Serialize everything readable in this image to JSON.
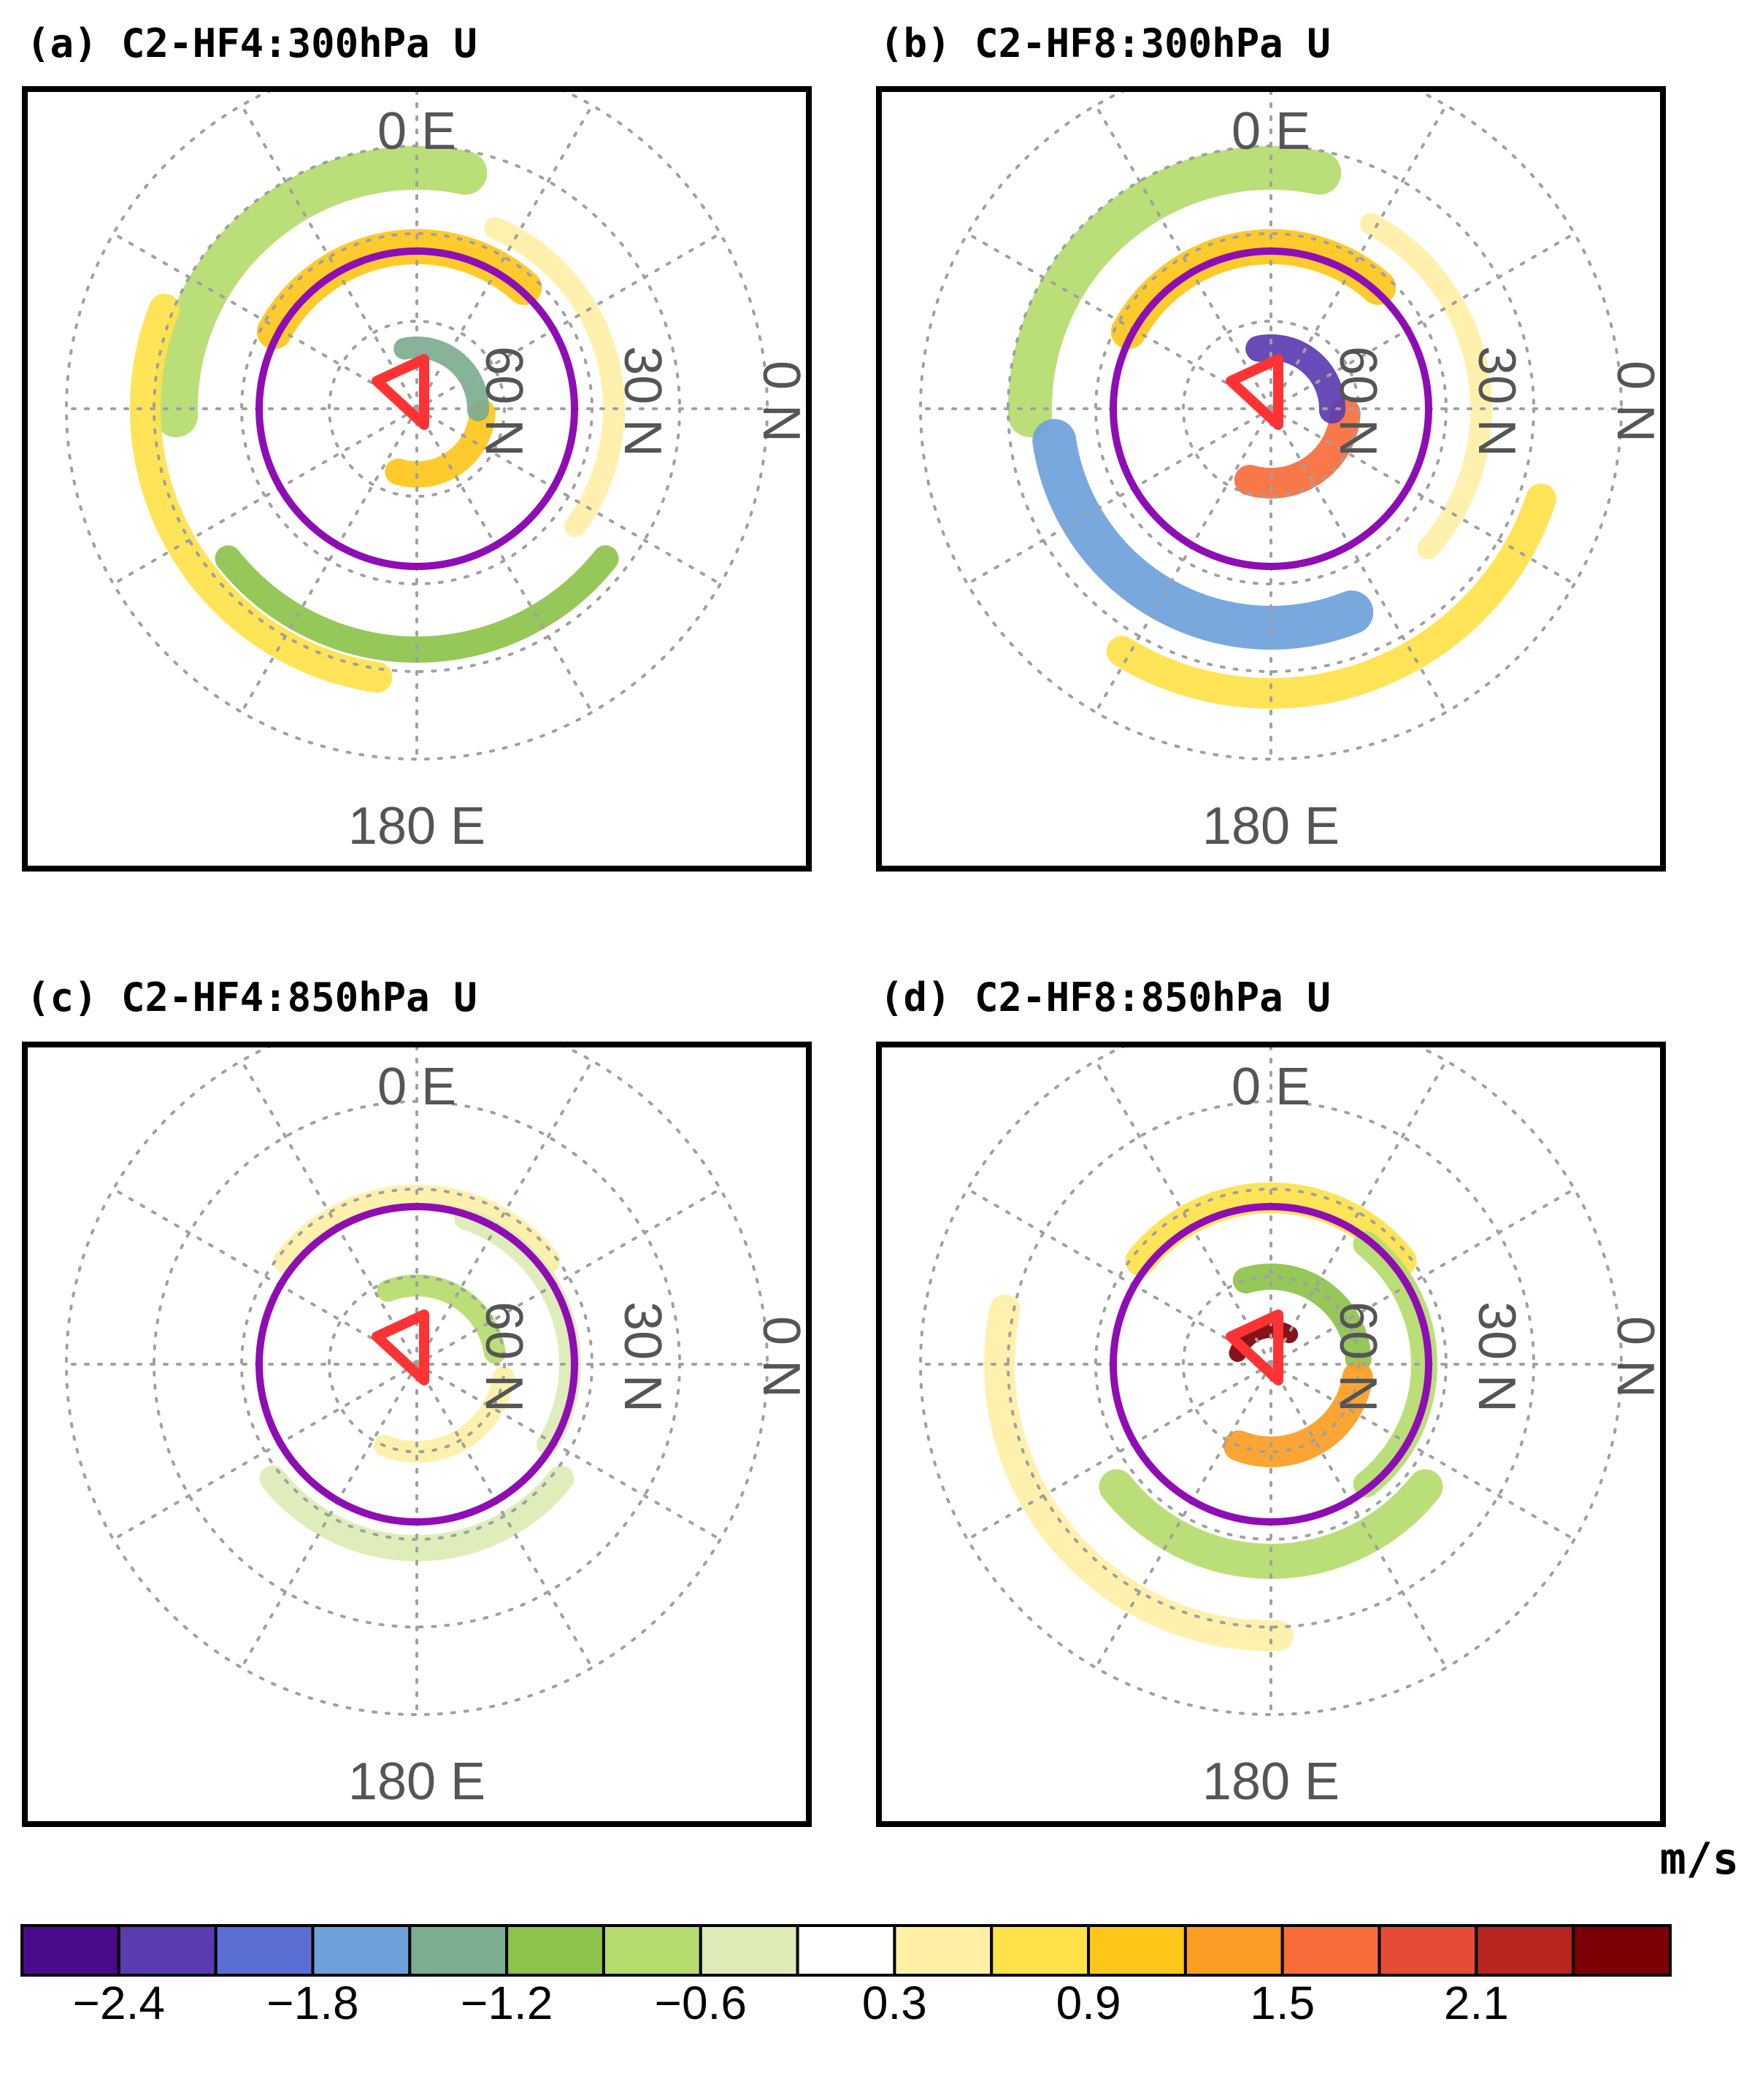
{
  "chart_data": [
    {
      "type": "heatmap",
      "panel": "a",
      "title": "(a) C2-HF4:300hPa U",
      "projection": "polar stereographic (northern hemisphere)",
      "map_labels": {
        "top": "0 E",
        "bottom": "180 E",
        "lat_labels": [
          "60 N",
          "30 N",
          "0 N"
        ]
      },
      "markers": [
        "purple circle at 60 N",
        "red triangle near pole"
      ],
      "anomaly_bands": [
        {
          "angle": -40,
          "radius": 0.55,
          "width": 0.1,
          "value": -0.8
        },
        {
          "angle": -10,
          "radius": 0.37,
          "width": 0.08,
          "value": 1.0
        },
        {
          "angle": 145,
          "radius": 0.15,
          "width": 0.06,
          "value": 1.0
        },
        {
          "angle": 40,
          "radius": 0.14,
          "width": 0.05,
          "value": -1.4
        },
        {
          "angle": -120,
          "radius": 0.62,
          "width": 0.07,
          "value": 0.6
        },
        {
          "angle": 180,
          "radius": 0.55,
          "width": 0.06,
          "value": -1.0
        },
        {
          "angle": 75,
          "radius": 0.45,
          "width": 0.05,
          "value": 0.5
        }
      ]
    },
    {
      "type": "heatmap",
      "panel": "b",
      "title": "(b) C2-HF8:300hPa U",
      "projection": "polar stereographic (northern hemisphere)",
      "map_labels": {
        "top": "0 E",
        "bottom": "180 E",
        "lat_labels": [
          "60 N",
          "30 N",
          "0 N"
        ]
      },
      "markers": [
        "purple circle at 60 N",
        "red triangle near pole"
      ],
      "anomaly_bands": [
        {
          "angle": -40,
          "radius": 0.55,
          "width": 0.1,
          "value": -0.8
        },
        {
          "angle": -10,
          "radius": 0.37,
          "width": 0.08,
          "value": 1.0
        },
        {
          "angle": 145,
          "radius": 0.17,
          "width": 0.07,
          "value": 1.6
        },
        {
          "angle": 40,
          "radius": 0.14,
          "width": 0.06,
          "value": -2.3
        },
        {
          "angle": -150,
          "radius": 0.5,
          "width": 0.1,
          "value": -1.8
        },
        {
          "angle": 160,
          "radius": 0.65,
          "width": 0.07,
          "value": 0.6
        },
        {
          "angle": 80,
          "radius": 0.48,
          "width": 0.05,
          "value": 0.4
        }
      ]
    },
    {
      "type": "heatmap",
      "panel": "c",
      "title": "(c) C2-HF4:850hPa U",
      "projection": "polar stereographic (northern hemisphere)",
      "map_labels": {
        "top": "0 E",
        "bottom": "180 E",
        "lat_labels": [
          "60 N",
          "30 N",
          "0 N"
        ]
      },
      "markers": [
        "purple circle at 60 N",
        "red triangle near pole"
      ],
      "anomaly_bands": [
        {
          "angle": 0,
          "radius": 0.38,
          "width": 0.06,
          "value": 0.5
        },
        {
          "angle": 30,
          "radius": 0.18,
          "width": 0.05,
          "value": -0.7
        },
        {
          "angle": 150,
          "radius": 0.2,
          "width": 0.05,
          "value": 0.5
        },
        {
          "angle": 180,
          "radius": 0.42,
          "width": 0.06,
          "value": -0.5
        },
        {
          "angle": 70,
          "radius": 0.35,
          "width": 0.05,
          "value": -0.5
        }
      ]
    },
    {
      "type": "heatmap",
      "panel": "d",
      "title": "(d) C2-HF8:850hPa U",
      "projection": "polar stereographic (northern hemisphere)",
      "map_labels": {
        "top": "0 E",
        "bottom": "180 E",
        "lat_labels": [
          "60 N",
          "30 N",
          "0 N"
        ]
      },
      "markers": [
        "purple circle at 60 N",
        "red triangle near pole"
      ],
      "anomaly_bands": [
        {
          "angle": 0,
          "radius": 0.38,
          "width": 0.07,
          "value": 0.8
        },
        {
          "angle": 35,
          "radius": 0.2,
          "width": 0.06,
          "value": -1.0
        },
        {
          "angle": 150,
          "radius": 0.2,
          "width": 0.07,
          "value": 1.2
        },
        {
          "angle": -20,
          "radius": 0.08,
          "width": 0.04,
          "value": 2.4
        },
        {
          "angle": 180,
          "radius": 0.45,
          "width": 0.08,
          "value": -0.9
        },
        {
          "angle": -130,
          "radius": 0.62,
          "width": 0.07,
          "value": 0.5
        },
        {
          "angle": 90,
          "radius": 0.35,
          "width": 0.06,
          "value": -0.9
        }
      ]
    }
  ],
  "colorbar": {
    "units": "m/s",
    "colors": [
      "#4b0a8c",
      "#5b3cb0",
      "#5a6ed4",
      "#6ea1db",
      "#7bae8f",
      "#8dc24b",
      "#b5dc6d",
      "#dcecb4",
      "#ffffff",
      "#fff0a6",
      "#ffe24a",
      "#ffc71a",
      "#fc9d23",
      "#f86c3a",
      "#e44c35",
      "#b82520",
      "#7b0006"
    ],
    "tick_labels": [
      "-2.4",
      "-1.8",
      "-1.2",
      "-0.6",
      "0.3",
      "0.9",
      "1.5",
      "2.1"
    ]
  },
  "ring_color": "#8e0db5",
  "triangle_color": "#ff3333"
}
